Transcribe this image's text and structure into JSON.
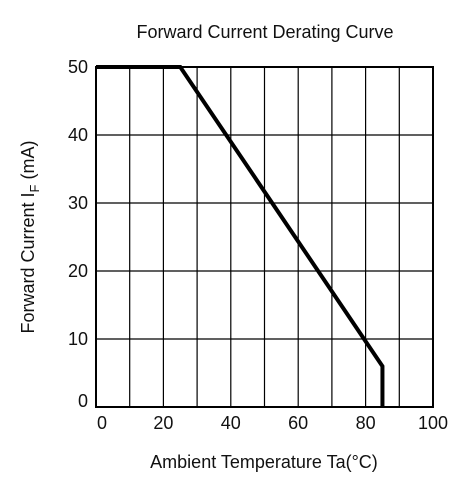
{
  "chart_data": {
    "type": "line",
    "title": "Forward Current Derating Curve",
    "xlabel": "Ambient Temperature Ta(°C)",
    "ylabel": "Forward Current I",
    "ylabel_subscript": "F",
    "ylabel_unit": " (mA)",
    "xlim": [
      0,
      100
    ],
    "ylim": [
      0,
      50
    ],
    "x_ticks": [
      0,
      20,
      40,
      60,
      80,
      100
    ],
    "y_ticks": [
      0,
      10,
      20,
      30,
      40,
      50
    ],
    "x_tick_labels": [
      "0",
      "20",
      "40",
      "60",
      "80",
      "100"
    ],
    "y_tick_labels": [
      "0",
      "10",
      "20",
      "30",
      "40",
      "50"
    ],
    "grid": true,
    "grid_step_x": 10,
    "grid_step_y": 10,
    "series": [
      {
        "x": [
          0,
          25,
          85,
          85
        ],
        "y": [
          50,
          50,
          6,
          0
        ],
        "color": "#000000"
      }
    ]
  }
}
